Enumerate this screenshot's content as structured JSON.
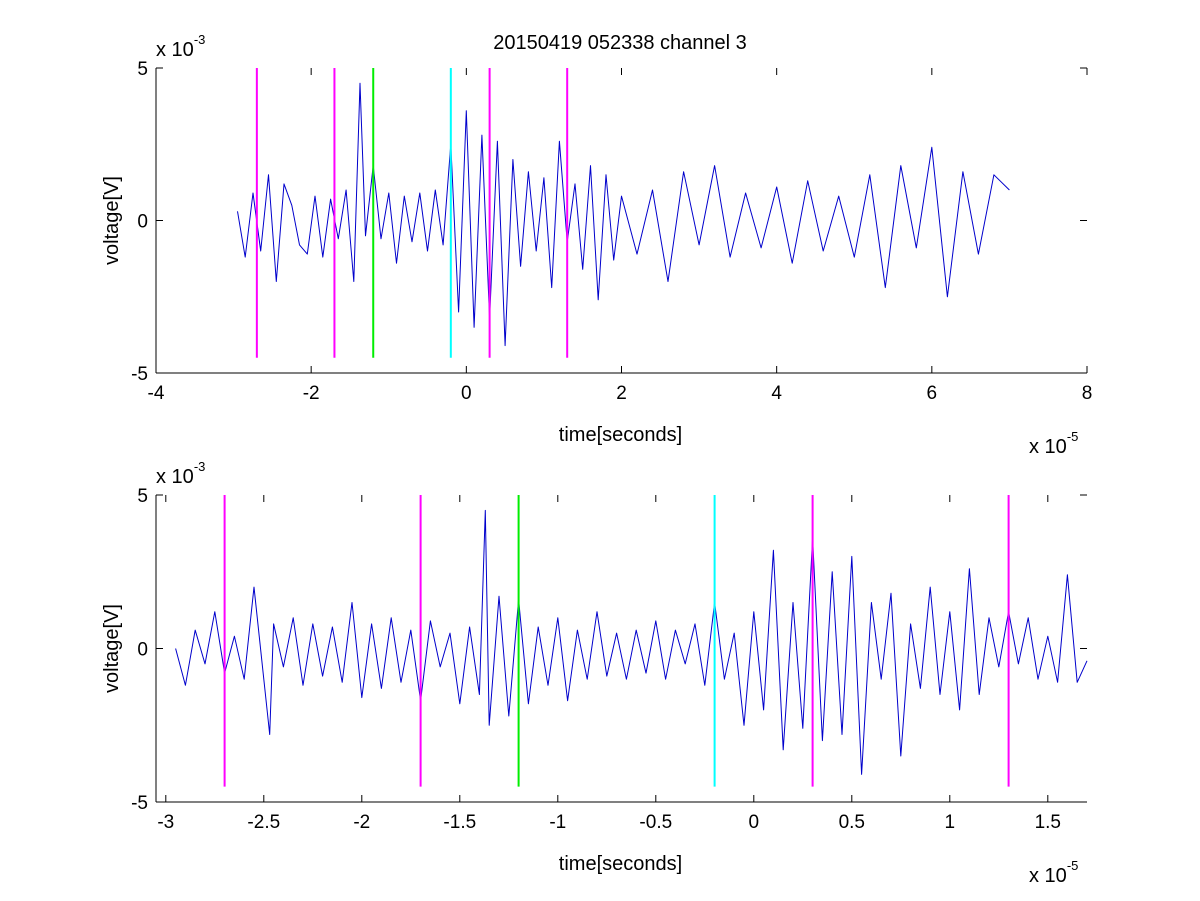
{
  "figure_title": "20150419 052338 channel 3",
  "colors": {
    "signal": "#0000cc",
    "magenta": "#ff00ff",
    "green": "#00ee00",
    "cyan": "#00ffff",
    "axis": "#000000"
  },
  "chart_data": [
    {
      "type": "line",
      "title": "20150419 052338 channel 3",
      "xlabel": "time[seconds]",
      "ylabel": "voltage[V]",
      "x_exponent_label": "x 10",
      "x_exponent": "-5",
      "y_exponent_label": "x 10",
      "y_exponent": "-3",
      "xlim": [
        -4,
        8
      ],
      "ylim": [
        -5,
        5
      ],
      "xticks": [
        -4,
        -2,
        0,
        2,
        4,
        6,
        8
      ],
      "xtick_labels": [
        "-4",
        "-2",
        "0",
        "2",
        "4",
        "6",
        "8"
      ],
      "yticks": [
        -5,
        0,
        5
      ],
      "ytick_labels": [
        "-5",
        "0",
        "5"
      ],
      "grid": false,
      "series": [
        {
          "x": [
            -2.95,
            -2.85,
            -2.75,
            -2.65,
            -2.55,
            -2.45,
            -2.35,
            -2.25,
            -2.15,
            -2.05,
            -1.95,
            -1.85,
            -1.75,
            -1.65,
            -1.55,
            -1.45,
            -1.37,
            -1.3,
            -1.2,
            -1.1,
            -1.0,
            -0.9,
            -0.8,
            -0.7,
            -0.6,
            -0.5,
            -0.4,
            -0.3,
            -0.2,
            -0.1,
            0.0,
            0.1,
            0.2,
            0.3,
            0.4,
            0.5,
            0.6,
            0.7,
            0.8,
            0.9,
            1.0,
            1.1,
            1.2,
            1.3,
            1.4,
            1.5,
            1.6,
            1.7,
            1.8,
            1.9,
            2.0,
            2.2,
            2.4,
            2.6,
            2.8,
            3.0,
            3.2,
            3.4,
            3.6,
            3.8,
            4.0,
            4.2,
            4.4,
            4.6,
            4.8,
            5.0,
            5.2,
            5.4,
            5.6,
            5.8,
            6.0,
            6.2,
            6.4,
            6.6,
            6.8,
            7.0
          ],
          "y": [
            0.3,
            -1.2,
            0.9,
            -1.0,
            1.5,
            -2.0,
            1.2,
            0.5,
            -0.8,
            -1.1,
            0.8,
            -1.2,
            0.7,
            -0.6,
            1.0,
            -2.0,
            4.5,
            -0.5,
            1.8,
            -0.6,
            0.9,
            -1.4,
            0.8,
            -0.7,
            0.9,
            -1.0,
            1.0,
            -0.8,
            2.5,
            -3.0,
            3.6,
            -3.5,
            2.8,
            -3.2,
            2.6,
            -4.1,
            2.0,
            -1.5,
            1.6,
            -1.0,
            1.4,
            -2.2,
            2.6,
            -0.7,
            1.2,
            -1.6,
            1.8,
            -2.6,
            1.5,
            -1.3,
            0.8,
            -1.1,
            1.0,
            -2.0,
            1.6,
            -0.8,
            1.8,
            -1.2,
            0.9,
            -0.9,
            1.1,
            -1.4,
            1.3,
            -1.0,
            0.8,
            -1.2,
            1.5,
            -2.2,
            1.8,
            -0.9,
            2.4,
            -2.5,
            1.6,
            -1.1,
            1.5,
            1.0
          ]
        }
      ],
      "vlines": [
        {
          "x": -2.7,
          "color": "magenta"
        },
        {
          "x": -1.7,
          "color": "magenta"
        },
        {
          "x": -1.2,
          "color": "green"
        },
        {
          "x": -0.2,
          "color": "cyan"
        },
        {
          "x": 0.3,
          "color": "magenta"
        },
        {
          "x": 1.3,
          "color": "magenta"
        }
      ],
      "vline_range": [
        -4.5,
        5
      ]
    },
    {
      "type": "line",
      "title": "",
      "xlabel": "time[seconds]",
      "ylabel": "voltage[V]",
      "x_exponent_label": "x 10",
      "x_exponent": "-5",
      "y_exponent_label": "x 10",
      "y_exponent": "-3",
      "xlim": [
        -3.05,
        1.7
      ],
      "ylim": [
        -5,
        5
      ],
      "xticks": [
        -3,
        -2.5,
        -2,
        -1.5,
        -1,
        -0.5,
        0,
        0.5,
        1,
        1.5
      ],
      "xtick_labels": [
        "-3",
        "-2.5",
        "-2",
        "-1.5",
        "-1",
        "-0.5",
        "0",
        "0.5",
        "1",
        "1.5"
      ],
      "yticks": [
        -5,
        0,
        5
      ],
      "ytick_labels": [
        "-5",
        "0",
        "5"
      ],
      "grid": false,
      "series": [
        {
          "x": [
            -2.95,
            -2.9,
            -2.85,
            -2.8,
            -2.75,
            -2.7,
            -2.65,
            -2.6,
            -2.55,
            -2.5,
            -2.47,
            -2.45,
            -2.4,
            -2.35,
            -2.3,
            -2.25,
            -2.2,
            -2.15,
            -2.1,
            -2.05,
            -2.0,
            -1.95,
            -1.9,
            -1.85,
            -1.8,
            -1.75,
            -1.7,
            -1.65,
            -1.6,
            -1.55,
            -1.5,
            -1.45,
            -1.4,
            -1.37,
            -1.35,
            -1.3,
            -1.25,
            -1.2,
            -1.15,
            -1.1,
            -1.05,
            -1.0,
            -0.95,
            -0.9,
            -0.85,
            -0.8,
            -0.75,
            -0.7,
            -0.65,
            -0.6,
            -0.55,
            -0.5,
            -0.45,
            -0.4,
            -0.35,
            -0.3,
            -0.25,
            -0.2,
            -0.15,
            -0.1,
            -0.05,
            0.0,
            0.05,
            0.1,
            0.15,
            0.2,
            0.25,
            0.3,
            0.35,
            0.4,
            0.45,
            0.5,
            0.55,
            0.6,
            0.65,
            0.7,
            0.75,
            0.8,
            0.85,
            0.9,
            0.95,
            1.0,
            1.05,
            1.1,
            1.15,
            1.2,
            1.25,
            1.3,
            1.35,
            1.4,
            1.45,
            1.5,
            1.55,
            1.6,
            1.65,
            1.7
          ],
          "y": [
            0.0,
            -1.2,
            0.6,
            -0.5,
            1.2,
            -0.8,
            0.4,
            -1.0,
            2.0,
            -1.0,
            -2.8,
            0.8,
            -0.6,
            1.0,
            -1.2,
            0.8,
            -0.9,
            0.7,
            -1.1,
            1.5,
            -1.6,
            0.8,
            -1.3,
            1.0,
            -1.1,
            0.6,
            -1.7,
            0.9,
            -0.6,
            0.5,
            -1.8,
            0.7,
            -1.5,
            4.5,
            -2.5,
            1.7,
            -2.2,
            1.6,
            -1.8,
            0.7,
            -1.2,
            1.0,
            -1.7,
            0.6,
            -1.0,
            1.2,
            -0.9,
            0.5,
            -1.0,
            0.6,
            -0.8,
            0.9,
            -1.0,
            0.6,
            -0.5,
            0.8,
            -1.2,
            1.5,
            -1.0,
            0.5,
            -2.5,
            1.2,
            -2.0,
            3.2,
            -3.3,
            1.5,
            -2.6,
            3.6,
            -3.0,
            2.5,
            -2.8,
            3.0,
            -4.1,
            1.5,
            -1.0,
            1.8,
            -3.5,
            0.8,
            -1.3,
            2.0,
            -1.5,
            1.2,
            -2.0,
            2.6,
            -1.5,
            1.0,
            -0.6,
            1.2,
            -0.5,
            1.0,
            -1.0,
            0.4,
            -1.1,
            2.4,
            -1.1,
            -0.4
          ]
        }
      ],
      "vlines": [
        {
          "x": -2.7,
          "color": "magenta"
        },
        {
          "x": -1.7,
          "color": "magenta"
        },
        {
          "x": -1.2,
          "color": "green"
        },
        {
          "x": -0.2,
          "color": "cyan"
        },
        {
          "x": 0.3,
          "color": "magenta"
        },
        {
          "x": 1.3,
          "color": "magenta"
        }
      ],
      "vline_range": [
        -4.5,
        5
      ]
    }
  ]
}
